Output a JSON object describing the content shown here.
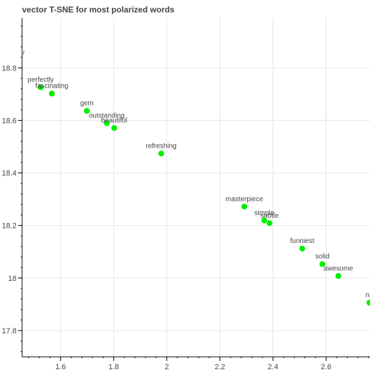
{
  "chart_data": {
    "type": "scatter",
    "title": "vector T-SNE for most polarized words",
    "xlabel": "",
    "ylabel": "",
    "xlim": [
      1.455,
      2.765
    ],
    "ylim": [
      17.7,
      18.99
    ],
    "x_ticks": [
      1.6,
      1.8,
      2,
      2.2,
      2.4,
      2.6
    ],
    "x_tick_labels": [
      "1.6",
      "1.8",
      "2",
      "2.2",
      "2.4",
      "2.6"
    ],
    "y_ticks": [
      17.8,
      18,
      18.2,
      18.4,
      18.6,
      18.8
    ],
    "y_tick_labels": [
      "17.8",
      "18",
      "18.2",
      "18.4",
      "18.6",
      "18.8"
    ],
    "grid": true,
    "marker_color": "#00ee00",
    "points": [
      {
        "label": "ally",
        "x": null,
        "y": null
      },
      {
        "label": "perfectly",
        "x": 1.525,
        "y": 18.726
      },
      {
        "label": "fascinating",
        "x": 1.567,
        "y": 18.702
      },
      {
        "label": "gem",
        "x": 1.699,
        "y": 18.636
      },
      {
        "label": "outstanding",
        "x": 1.774,
        "y": 18.589
      },
      {
        "label": "beautiful",
        "x": 1.802,
        "y": 18.571
      },
      {
        "label": "refreshing",
        "x": 1.979,
        "y": 18.474
      },
      {
        "label": "masterpiece",
        "x": 2.292,
        "y": 18.272
      },
      {
        "label": "simple",
        "x": 2.367,
        "y": 18.219
      },
      {
        "label": "subtle",
        "x": 2.387,
        "y": 18.209
      },
      {
        "label": "funniest",
        "x": 2.51,
        "y": 18.112
      },
      {
        "label": "solid",
        "x": 2.586,
        "y": 18.053
      },
      {
        "label": "awesome",
        "x": 2.646,
        "y": 18.008
      },
      {
        "label": "no",
        "x": 2.763,
        "y": 17.906
      }
    ]
  }
}
